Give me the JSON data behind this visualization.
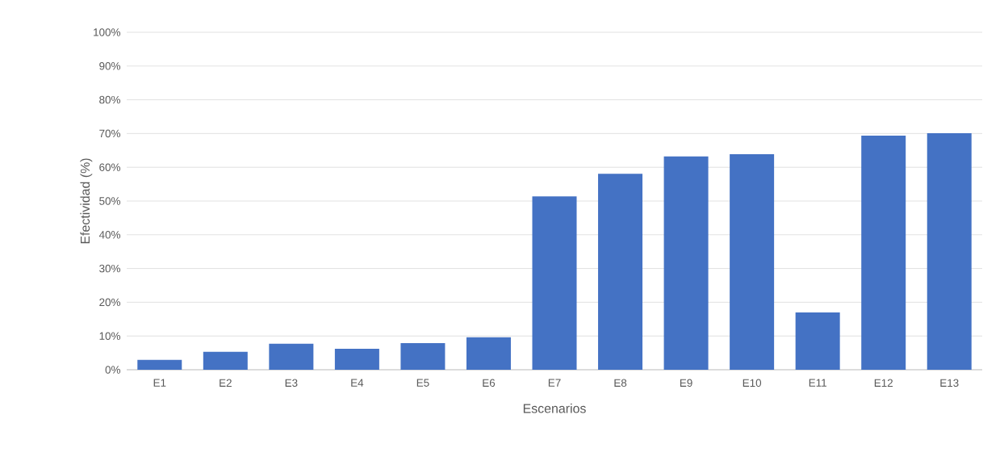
{
  "chart_data": {
    "type": "bar",
    "xlabel": "Escenarios",
    "ylabel": "Efectividad (%)",
    "categories": [
      "E1",
      "E2",
      "E3",
      "E4",
      "E5",
      "E6",
      "E7",
      "E8",
      "E9",
      "E10",
      "E11",
      "E12",
      "E13"
    ],
    "values": [
      2.9,
      5.3,
      7.7,
      6.2,
      7.9,
      9.6,
      51.4,
      58.1,
      63.2,
      63.9,
      17.0,
      69.4,
      70.1
    ],
    "color": "#4472c4",
    "ylim": [
      0,
      100
    ],
    "yticks": [
      {
        "value": 0,
        "label": "0%"
      },
      {
        "value": 10,
        "label": "10%"
      },
      {
        "value": 20,
        "label": "20%"
      },
      {
        "value": 30,
        "label": "30%"
      },
      {
        "value": 40,
        "label": "40%"
      },
      {
        "value": 50,
        "label": "50%"
      },
      {
        "value": 60,
        "label": "60%"
      },
      {
        "value": 70,
        "label": "70%"
      },
      {
        "value": 80,
        "label": "80%"
      },
      {
        "value": 90,
        "label": "90%"
      },
      {
        "value": 100,
        "label": "100%"
      }
    ],
    "grid": "y"
  }
}
